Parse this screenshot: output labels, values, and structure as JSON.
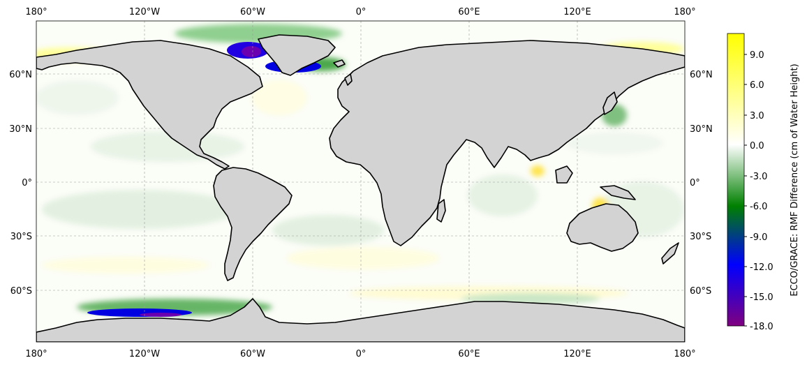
{
  "map": {
    "projection": "PlateCarree",
    "lon_ticks_top": [
      "180°",
      "120°W",
      "60°W",
      "0°",
      "60°E",
      "120°E",
      "180°"
    ],
    "lon_ticks_bottom": [
      "180°",
      "120°W",
      "60°W",
      "0°",
      "60°E",
      "120°E",
      "180°"
    ],
    "lat_ticks_left": [
      "60°N",
      "30°N",
      "0°",
      "30°S",
      "60°S"
    ],
    "lat_ticks_right": [
      "60°N",
      "30°N",
      "0°",
      "30°S",
      "60°S"
    ],
    "land_color": "#d3d3d3",
    "ocean_base_color": "#fbfdf7",
    "gridlines": true
  },
  "colorbar": {
    "title": "ECCO/GRACE: RMF Difference (cm of Water Height)",
    "tick_labels": [
      "9.0",
      "6.0",
      "3.0",
      "0.0",
      "-3.0",
      "-6.0",
      "-9.0",
      "-12.0",
      "-15.0",
      "-18.0"
    ],
    "range": [
      -18.0,
      11.0
    ],
    "colors": [
      "#800080",
      "#0000ff",
      "#008000",
      "#ffffff",
      "#ffff00"
    ]
  }
}
